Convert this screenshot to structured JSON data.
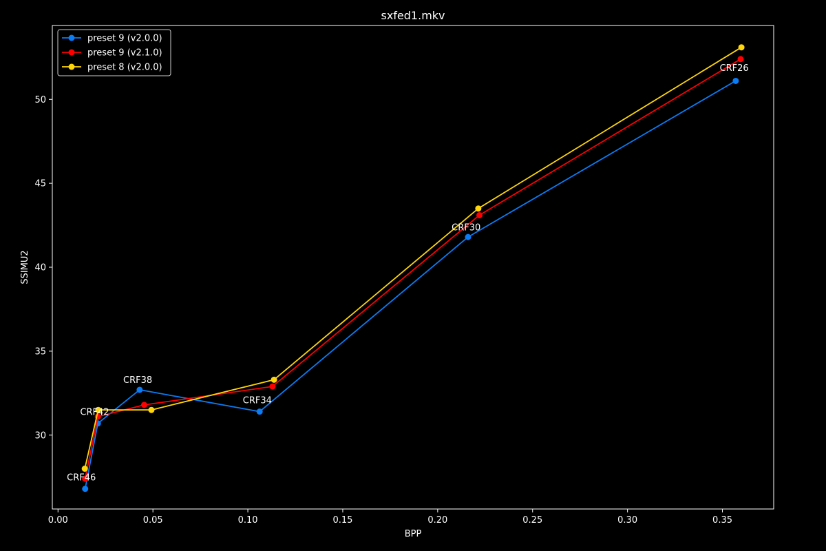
{
  "chart_data": {
    "type": "line",
    "title": "sxfed1.mkv",
    "xlabel": "BPP",
    "ylabel": "SSIMU2",
    "xlim": [
      -0.003,
      0.377
    ],
    "ylim": [
      25.6,
      54.4
    ],
    "x_ticks": [
      0.0,
      0.05,
      0.1,
      0.15,
      0.2,
      0.25,
      0.3,
      0.35
    ],
    "x_tick_labels": [
      "0.00",
      "0.05",
      "0.10",
      "0.15",
      "0.20",
      "0.25",
      "0.30",
      "0.35"
    ],
    "y_ticks": [
      30,
      35,
      40,
      45,
      50
    ],
    "y_tick_labels": [
      "30",
      "35",
      "40",
      "45",
      "50"
    ],
    "grid": false,
    "legend_position": "top-left",
    "series": [
      {
        "name": "preset 9 (v2.0.0)",
        "color": "#0a7cf5",
        "x": [
          0.0143,
          0.021,
          0.043,
          0.1062,
          0.216,
          0.357
        ],
        "y": [
          26.8,
          30.7,
          32.7,
          31.4,
          41.8,
          51.1
        ]
      },
      {
        "name": "preset 9 (v2.1.0)",
        "color": "#ff0000",
        "x": [
          0.0143,
          0.021,
          0.0454,
          0.113,
          0.222,
          0.3596
        ],
        "y": [
          27.4,
          31.1,
          31.8,
          32.9,
          43.1,
          52.4
        ]
      },
      {
        "name": "preset 8 (v2.0.0)",
        "color": "#ffd60a",
        "x": [
          0.0141,
          0.0212,
          0.0492,
          0.1138,
          0.2214,
          0.36
        ],
        "y": [
          28.0,
          31.5,
          31.5,
          33.3,
          43.5,
          53.1
        ]
      }
    ],
    "annotations": [
      {
        "text": "CRF46",
        "x": 0.0123,
        "y": 27.3
      },
      {
        "text": "CRF42",
        "x": 0.0193,
        "y": 31.2
      },
      {
        "text": "CRF38",
        "x": 0.042,
        "y": 33.1
      },
      {
        "text": "CRF34",
        "x": 0.105,
        "y": 31.9
      },
      {
        "text": "CRF30",
        "x": 0.215,
        "y": 42.2
      },
      {
        "text": "CRF26",
        "x": 0.3562,
        "y": 51.7
      }
    ]
  }
}
